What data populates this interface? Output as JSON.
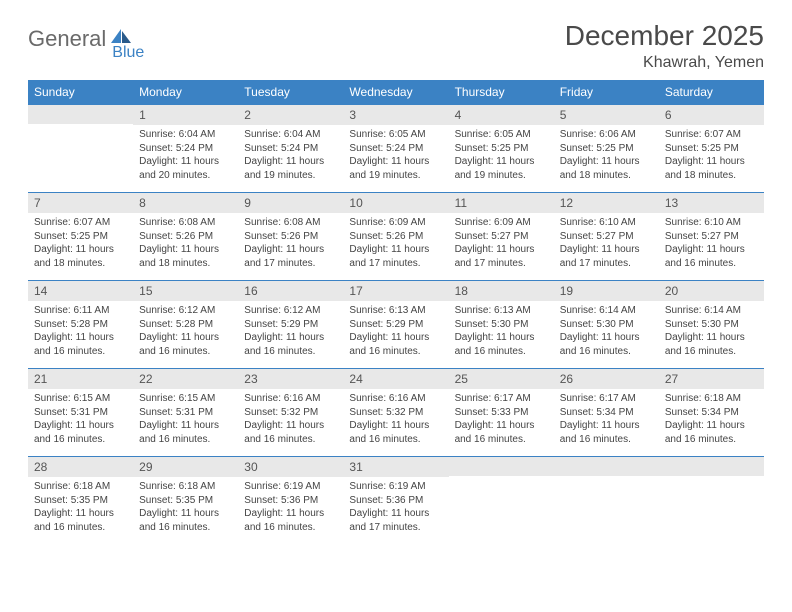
{
  "logo": {
    "text1": "General",
    "text2": "Blue"
  },
  "title": "December 2025",
  "location": "Khawrah, Yemen",
  "colors": {
    "header_bg": "#3b82c4",
    "header_text": "#ffffff",
    "daynum_bg": "#e8e8e8",
    "border": "#3b82c4",
    "logo_gray": "#6a6a6a",
    "logo_blue": "#3b82c4"
  },
  "weekdays": [
    "Sunday",
    "Monday",
    "Tuesday",
    "Wednesday",
    "Thursday",
    "Friday",
    "Saturday"
  ],
  "weeks": [
    [
      {
        "n": "",
        "sr": "",
        "ss": "",
        "dl": ""
      },
      {
        "n": "1",
        "sr": "6:04 AM",
        "ss": "5:24 PM",
        "dl": "11 hours and 20 minutes."
      },
      {
        "n": "2",
        "sr": "6:04 AM",
        "ss": "5:24 PM",
        "dl": "11 hours and 19 minutes."
      },
      {
        "n": "3",
        "sr": "6:05 AM",
        "ss": "5:24 PM",
        "dl": "11 hours and 19 minutes."
      },
      {
        "n": "4",
        "sr": "6:05 AM",
        "ss": "5:25 PM",
        "dl": "11 hours and 19 minutes."
      },
      {
        "n": "5",
        "sr": "6:06 AM",
        "ss": "5:25 PM",
        "dl": "11 hours and 18 minutes."
      },
      {
        "n": "6",
        "sr": "6:07 AM",
        "ss": "5:25 PM",
        "dl": "11 hours and 18 minutes."
      }
    ],
    [
      {
        "n": "7",
        "sr": "6:07 AM",
        "ss": "5:25 PM",
        "dl": "11 hours and 18 minutes."
      },
      {
        "n": "8",
        "sr": "6:08 AM",
        "ss": "5:26 PM",
        "dl": "11 hours and 18 minutes."
      },
      {
        "n": "9",
        "sr": "6:08 AM",
        "ss": "5:26 PM",
        "dl": "11 hours and 17 minutes."
      },
      {
        "n": "10",
        "sr": "6:09 AM",
        "ss": "5:26 PM",
        "dl": "11 hours and 17 minutes."
      },
      {
        "n": "11",
        "sr": "6:09 AM",
        "ss": "5:27 PM",
        "dl": "11 hours and 17 minutes."
      },
      {
        "n": "12",
        "sr": "6:10 AM",
        "ss": "5:27 PM",
        "dl": "11 hours and 17 minutes."
      },
      {
        "n": "13",
        "sr": "6:10 AM",
        "ss": "5:27 PM",
        "dl": "11 hours and 16 minutes."
      }
    ],
    [
      {
        "n": "14",
        "sr": "6:11 AM",
        "ss": "5:28 PM",
        "dl": "11 hours and 16 minutes."
      },
      {
        "n": "15",
        "sr": "6:12 AM",
        "ss": "5:28 PM",
        "dl": "11 hours and 16 minutes."
      },
      {
        "n": "16",
        "sr": "6:12 AM",
        "ss": "5:29 PM",
        "dl": "11 hours and 16 minutes."
      },
      {
        "n": "17",
        "sr": "6:13 AM",
        "ss": "5:29 PM",
        "dl": "11 hours and 16 minutes."
      },
      {
        "n": "18",
        "sr": "6:13 AM",
        "ss": "5:30 PM",
        "dl": "11 hours and 16 minutes."
      },
      {
        "n": "19",
        "sr": "6:14 AM",
        "ss": "5:30 PM",
        "dl": "11 hours and 16 minutes."
      },
      {
        "n": "20",
        "sr": "6:14 AM",
        "ss": "5:30 PM",
        "dl": "11 hours and 16 minutes."
      }
    ],
    [
      {
        "n": "21",
        "sr": "6:15 AM",
        "ss": "5:31 PM",
        "dl": "11 hours and 16 minutes."
      },
      {
        "n": "22",
        "sr": "6:15 AM",
        "ss": "5:31 PM",
        "dl": "11 hours and 16 minutes."
      },
      {
        "n": "23",
        "sr": "6:16 AM",
        "ss": "5:32 PM",
        "dl": "11 hours and 16 minutes."
      },
      {
        "n": "24",
        "sr": "6:16 AM",
        "ss": "5:32 PM",
        "dl": "11 hours and 16 minutes."
      },
      {
        "n": "25",
        "sr": "6:17 AM",
        "ss": "5:33 PM",
        "dl": "11 hours and 16 minutes."
      },
      {
        "n": "26",
        "sr": "6:17 AM",
        "ss": "5:34 PM",
        "dl": "11 hours and 16 minutes."
      },
      {
        "n": "27",
        "sr": "6:18 AM",
        "ss": "5:34 PM",
        "dl": "11 hours and 16 minutes."
      }
    ],
    [
      {
        "n": "28",
        "sr": "6:18 AM",
        "ss": "5:35 PM",
        "dl": "11 hours and 16 minutes."
      },
      {
        "n": "29",
        "sr": "6:18 AM",
        "ss": "5:35 PM",
        "dl": "11 hours and 16 minutes."
      },
      {
        "n": "30",
        "sr": "6:19 AM",
        "ss": "5:36 PM",
        "dl": "11 hours and 16 minutes."
      },
      {
        "n": "31",
        "sr": "6:19 AM",
        "ss": "5:36 PM",
        "dl": "11 hours and 17 minutes."
      },
      {
        "n": "",
        "sr": "",
        "ss": "",
        "dl": ""
      },
      {
        "n": "",
        "sr": "",
        "ss": "",
        "dl": ""
      },
      {
        "n": "",
        "sr": "",
        "ss": "",
        "dl": ""
      }
    ]
  ],
  "labels": {
    "sunrise": "Sunrise:",
    "sunset": "Sunset:",
    "daylight": "Daylight:"
  }
}
